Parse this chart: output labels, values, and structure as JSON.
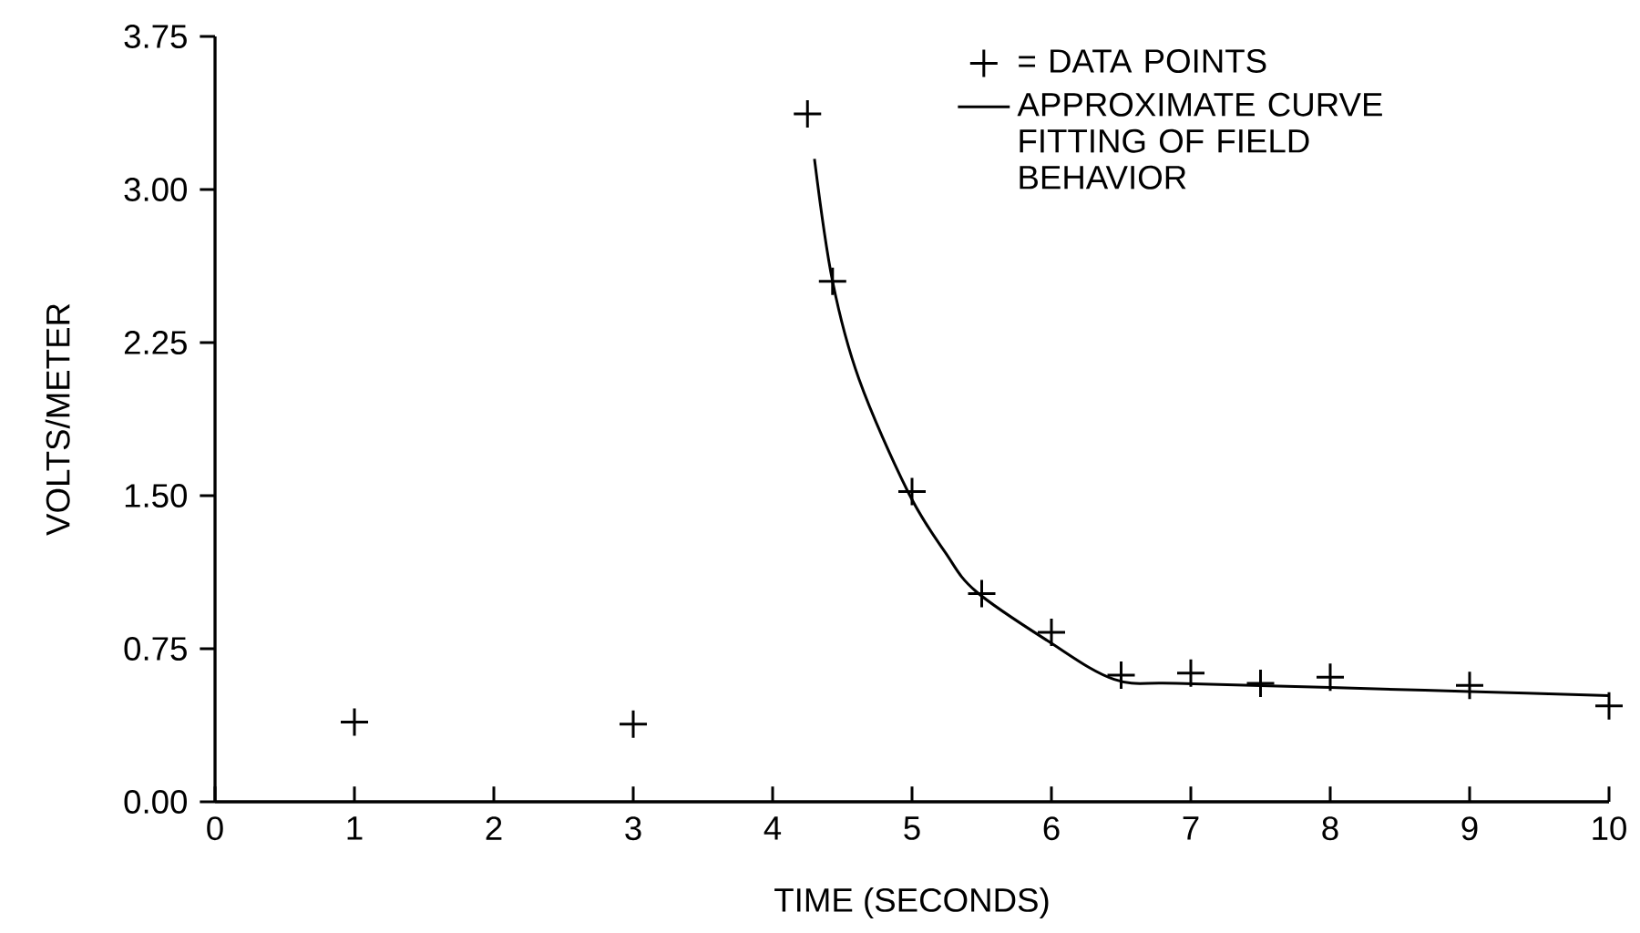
{
  "chart_data": {
    "type": "scatter",
    "xlabel": "TIME (SECONDS)",
    "ylabel": "VOLTS/METER",
    "xlim": [
      0,
      10
    ],
    "ylim": [
      0,
      3.75
    ],
    "xticks": [
      0,
      1,
      2,
      3,
      4,
      5,
      6,
      7,
      8,
      9,
      10
    ],
    "yticks": [
      {
        "value": 0,
        "label": "0.00"
      },
      {
        "value": 0.75,
        "label": "0.75"
      },
      {
        "value": 1.5,
        "label": "1.50"
      },
      {
        "value": 2.25,
        "label": "2.25"
      },
      {
        "value": 3,
        "label": "3.00"
      },
      {
        "value": 3.75,
        "label": "3.75"
      }
    ],
    "legend": "top right",
    "grid": false,
    "series": [
      {
        "name": "= DATA POINTS",
        "marker": "cross",
        "color": "#000000",
        "x": [
          1,
          3,
          4.25,
          4.43,
          5,
          5.5,
          6,
          6.5,
          7,
          7.5,
          8,
          9,
          10
        ],
        "values": [
          0.39,
          0.38,
          3.37,
          2.55,
          1.52,
          1.02,
          0.83,
          0.62,
          0.63,
          0.58,
          0.61,
          0.57,
          0.47
        ]
      },
      {
        "name": "APPROXIMATE CURVE FITTING OF FIELD BEHAVIOR",
        "type": "line",
        "marker": "none",
        "line_style": "solid",
        "color": "#000000",
        "x": [
          4.3,
          4.43,
          4.62,
          4.97,
          5.24,
          5.46,
          5.97,
          6.45,
          6.9,
          8,
          9,
          10
        ],
        "values": [
          3.15,
          2.55,
          2.07,
          1.52,
          1.22,
          1.03,
          0.79,
          0.6,
          0.58,
          0.56,
          0.54,
          0.52
        ]
      }
    ]
  }
}
